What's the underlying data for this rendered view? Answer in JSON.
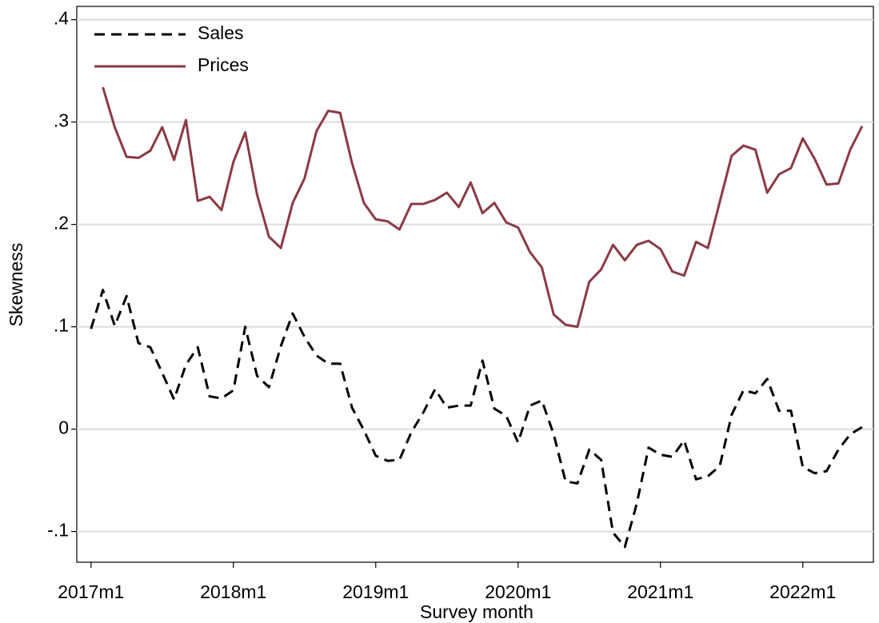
{
  "chart_data": {
    "type": "line",
    "x_label": "Survey month",
    "y_label": "Skewness",
    "x": [
      684,
      685,
      686,
      687,
      688,
      689,
      690,
      691,
      692,
      693,
      694,
      695,
      696,
      697,
      698,
      699,
      700,
      701,
      702,
      703,
      704,
      705,
      706,
      707,
      708,
      709,
      710,
      711,
      712,
      713,
      714,
      715,
      716,
      717,
      718,
      719,
      720,
      721,
      722,
      723,
      724,
      725,
      726,
      727,
      728,
      729,
      730,
      731,
      732,
      733,
      734,
      735,
      736,
      737,
      738,
      739,
      740,
      741,
      742,
      743,
      744,
      745,
      746,
      747,
      748,
      749
    ],
    "series": [
      {
        "name": "Sales",
        "color": "#000000",
        "dashed": true,
        "values": [
          0.098,
          0.136,
          0.101,
          0.13,
          0.084,
          0.08,
          0.055,
          0.029,
          0.063,
          0.08,
          0.032,
          0.03,
          0.038,
          0.1,
          0.052,
          0.041,
          0.081,
          0.113,
          0.09,
          0.072,
          0.064,
          0.064,
          0.021,
          -0.001,
          -0.026,
          -0.031,
          -0.03,
          -0.003,
          0.016,
          0.039,
          0.021,
          0.023,
          0.023,
          0.067,
          0.02,
          0.013,
          -0.013,
          0.023,
          0.028,
          -0.005,
          -0.051,
          -0.053,
          -0.02,
          -0.03,
          -0.101,
          -0.115,
          -0.073,
          -0.018,
          -0.025,
          -0.027,
          -0.011,
          -0.049,
          -0.046,
          -0.036,
          0.014,
          0.038,
          0.035,
          0.049,
          0.018,
          0.018,
          -0.037,
          -0.043,
          -0.041,
          -0.02,
          -0.005,
          0.002
        ]
      },
      {
        "name": "Prices",
        "color": "#8b3a45",
        "dashed": false,
        "values": [
          null,
          0.334,
          0.295,
          0.266,
          0.265,
          0.272,
          0.295,
          0.263,
          0.302,
          0.223,
          0.227,
          0.214,
          0.261,
          0.29,
          0.229,
          0.188,
          0.177,
          0.221,
          0.245,
          0.291,
          0.311,
          0.309,
          0.26,
          0.221,
          0.205,
          0.203,
          0.195,
          0.22,
          0.22,
          0.224,
          0.231,
          0.217,
          0.241,
          0.211,
          0.221,
          0.202,
          0.197,
          0.173,
          0.158,
          0.112,
          0.102,
          0.1,
          0.144,
          0.156,
          0.18,
          0.165,
          0.18,
          0.184,
          0.176,
          0.154,
          0.15,
          0.183,
          0.177,
          0.222,
          0.267,
          0.277,
          0.273,
          0.231,
          0.249,
          0.255,
          0.284,
          0.264,
          0.239,
          0.24,
          0.273,
          0.296
        ]
      }
    ],
    "xlim": [
      682.8,
      749.95
    ],
    "xticks": [
      {
        "value": 684,
        "label": "2017m1"
      },
      {
        "value": 696,
        "label": "2018m1"
      },
      {
        "value": 708,
        "label": "2019m1"
      },
      {
        "value": 720,
        "label": "2020m1"
      },
      {
        "value": 732,
        "label": "2021m1"
      },
      {
        "value": 744,
        "label": "2022m1"
      }
    ],
    "ylim": [
      -0.13,
      0.413
    ],
    "yticks": [
      {
        "value": -0.1,
        "label": "-.1"
      },
      0,
      {
        "value": 0.1,
        "label": ".1"
      },
      {
        "value": 0.2,
        "label": ".2"
      },
      {
        "value": 0.3,
        "label": ".3"
      },
      {
        "value": 0.4,
        "label": ".4"
      }
    ],
    "grid": true,
    "legend": "top-left"
  }
}
